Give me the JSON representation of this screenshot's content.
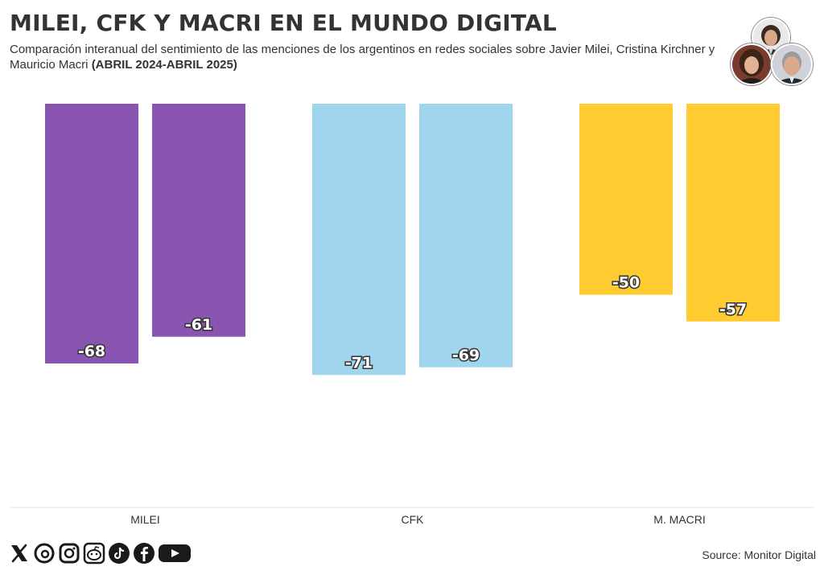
{
  "header": {
    "title": "MILEI, CFK Y MACRI EN EL MUNDO DIGITAL",
    "subtitle_text": "Comparación interanual del sentimiento de las menciones de los argentinos en redes sociales sobre Javier Milei, Cristina Kirchner y Mauricio Macri",
    "subtitle_bold": "(ABRIL 2024-ABRIL 2025)"
  },
  "chart_data": {
    "type": "bar",
    "categories": [
      "MILEI",
      "CFK",
      "M. MACRI"
    ],
    "series": [
      {
        "values": [
          -68,
          -71,
          -50
        ]
      },
      {
        "values": [
          -61,
          -69,
          -57
        ]
      }
    ],
    "colors": [
      "#8A55B1",
      "#9FD6ED",
      "#FFCB30"
    ],
    "ylim": [
      -100,
      0
    ],
    "grid": false,
    "legend": "none"
  },
  "footer": {
    "source": "Source: Monitor Digital",
    "social_icons": [
      "x-icon",
      "threads-icon",
      "instagram-icon",
      "reddit-icon",
      "tiktok-icon",
      "facebook-icon",
      "youtube-icon"
    ]
  }
}
